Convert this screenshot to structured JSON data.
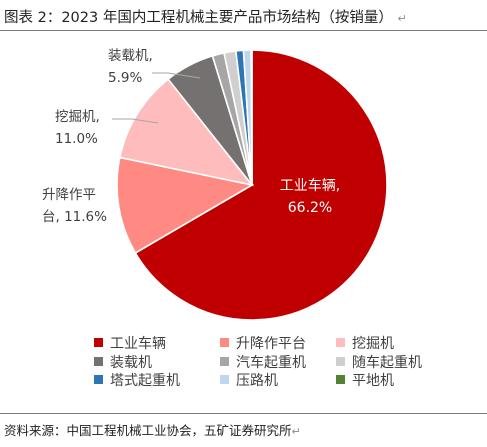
{
  "figure": {
    "title": "图表 2：2023 年国内工程机械主要产品市场结构（按销量）",
    "source": "资料来源：中国工程机械工业协会，五矿证券研究所",
    "return_mark": "↵"
  },
  "chart_data": {
    "type": "pie",
    "start_angle_deg": 0,
    "direction": "clockwise",
    "legend_position": "bottom",
    "slices": [
      {
        "name": "工业车辆",
        "value": 66.2,
        "color": "#c00000",
        "label": [
          "工业车辆,",
          "66.2%"
        ],
        "show_label": true
      },
      {
        "name": "升降作平台",
        "value": 11.6,
        "color": "#ff8a84",
        "label": [
          "升降作平",
          "台, 11.6%"
        ],
        "show_label": true
      },
      {
        "name": "挖掘机",
        "value": 11.0,
        "color": "#ffbcbc",
        "label": [
          "挖掘机,",
          "11.0%"
        ],
        "show_label": true
      },
      {
        "name": "装载机",
        "value": 5.9,
        "color": "#767171",
        "label": [
          "装载机,",
          "5.9%"
        ],
        "show_label": true
      },
      {
        "name": "汽车起重机",
        "value": 1.4,
        "color": "#a6a6a6",
        "label": [],
        "show_label": false
      },
      {
        "name": "随车起重机",
        "value": 1.4,
        "color": "#d0cece",
        "label": [],
        "show_label": false
      },
      {
        "name": "塔式起重机",
        "value": 0.9,
        "color": "#2e75b6",
        "label": [],
        "show_label": false
      },
      {
        "name": "压路机",
        "value": 0.9,
        "color": "#bdd7ee",
        "label": [],
        "show_label": false
      },
      {
        "name": "平地机",
        "value": 0.1,
        "color": "#548235",
        "label": [],
        "show_label": false
      }
    ]
  }
}
